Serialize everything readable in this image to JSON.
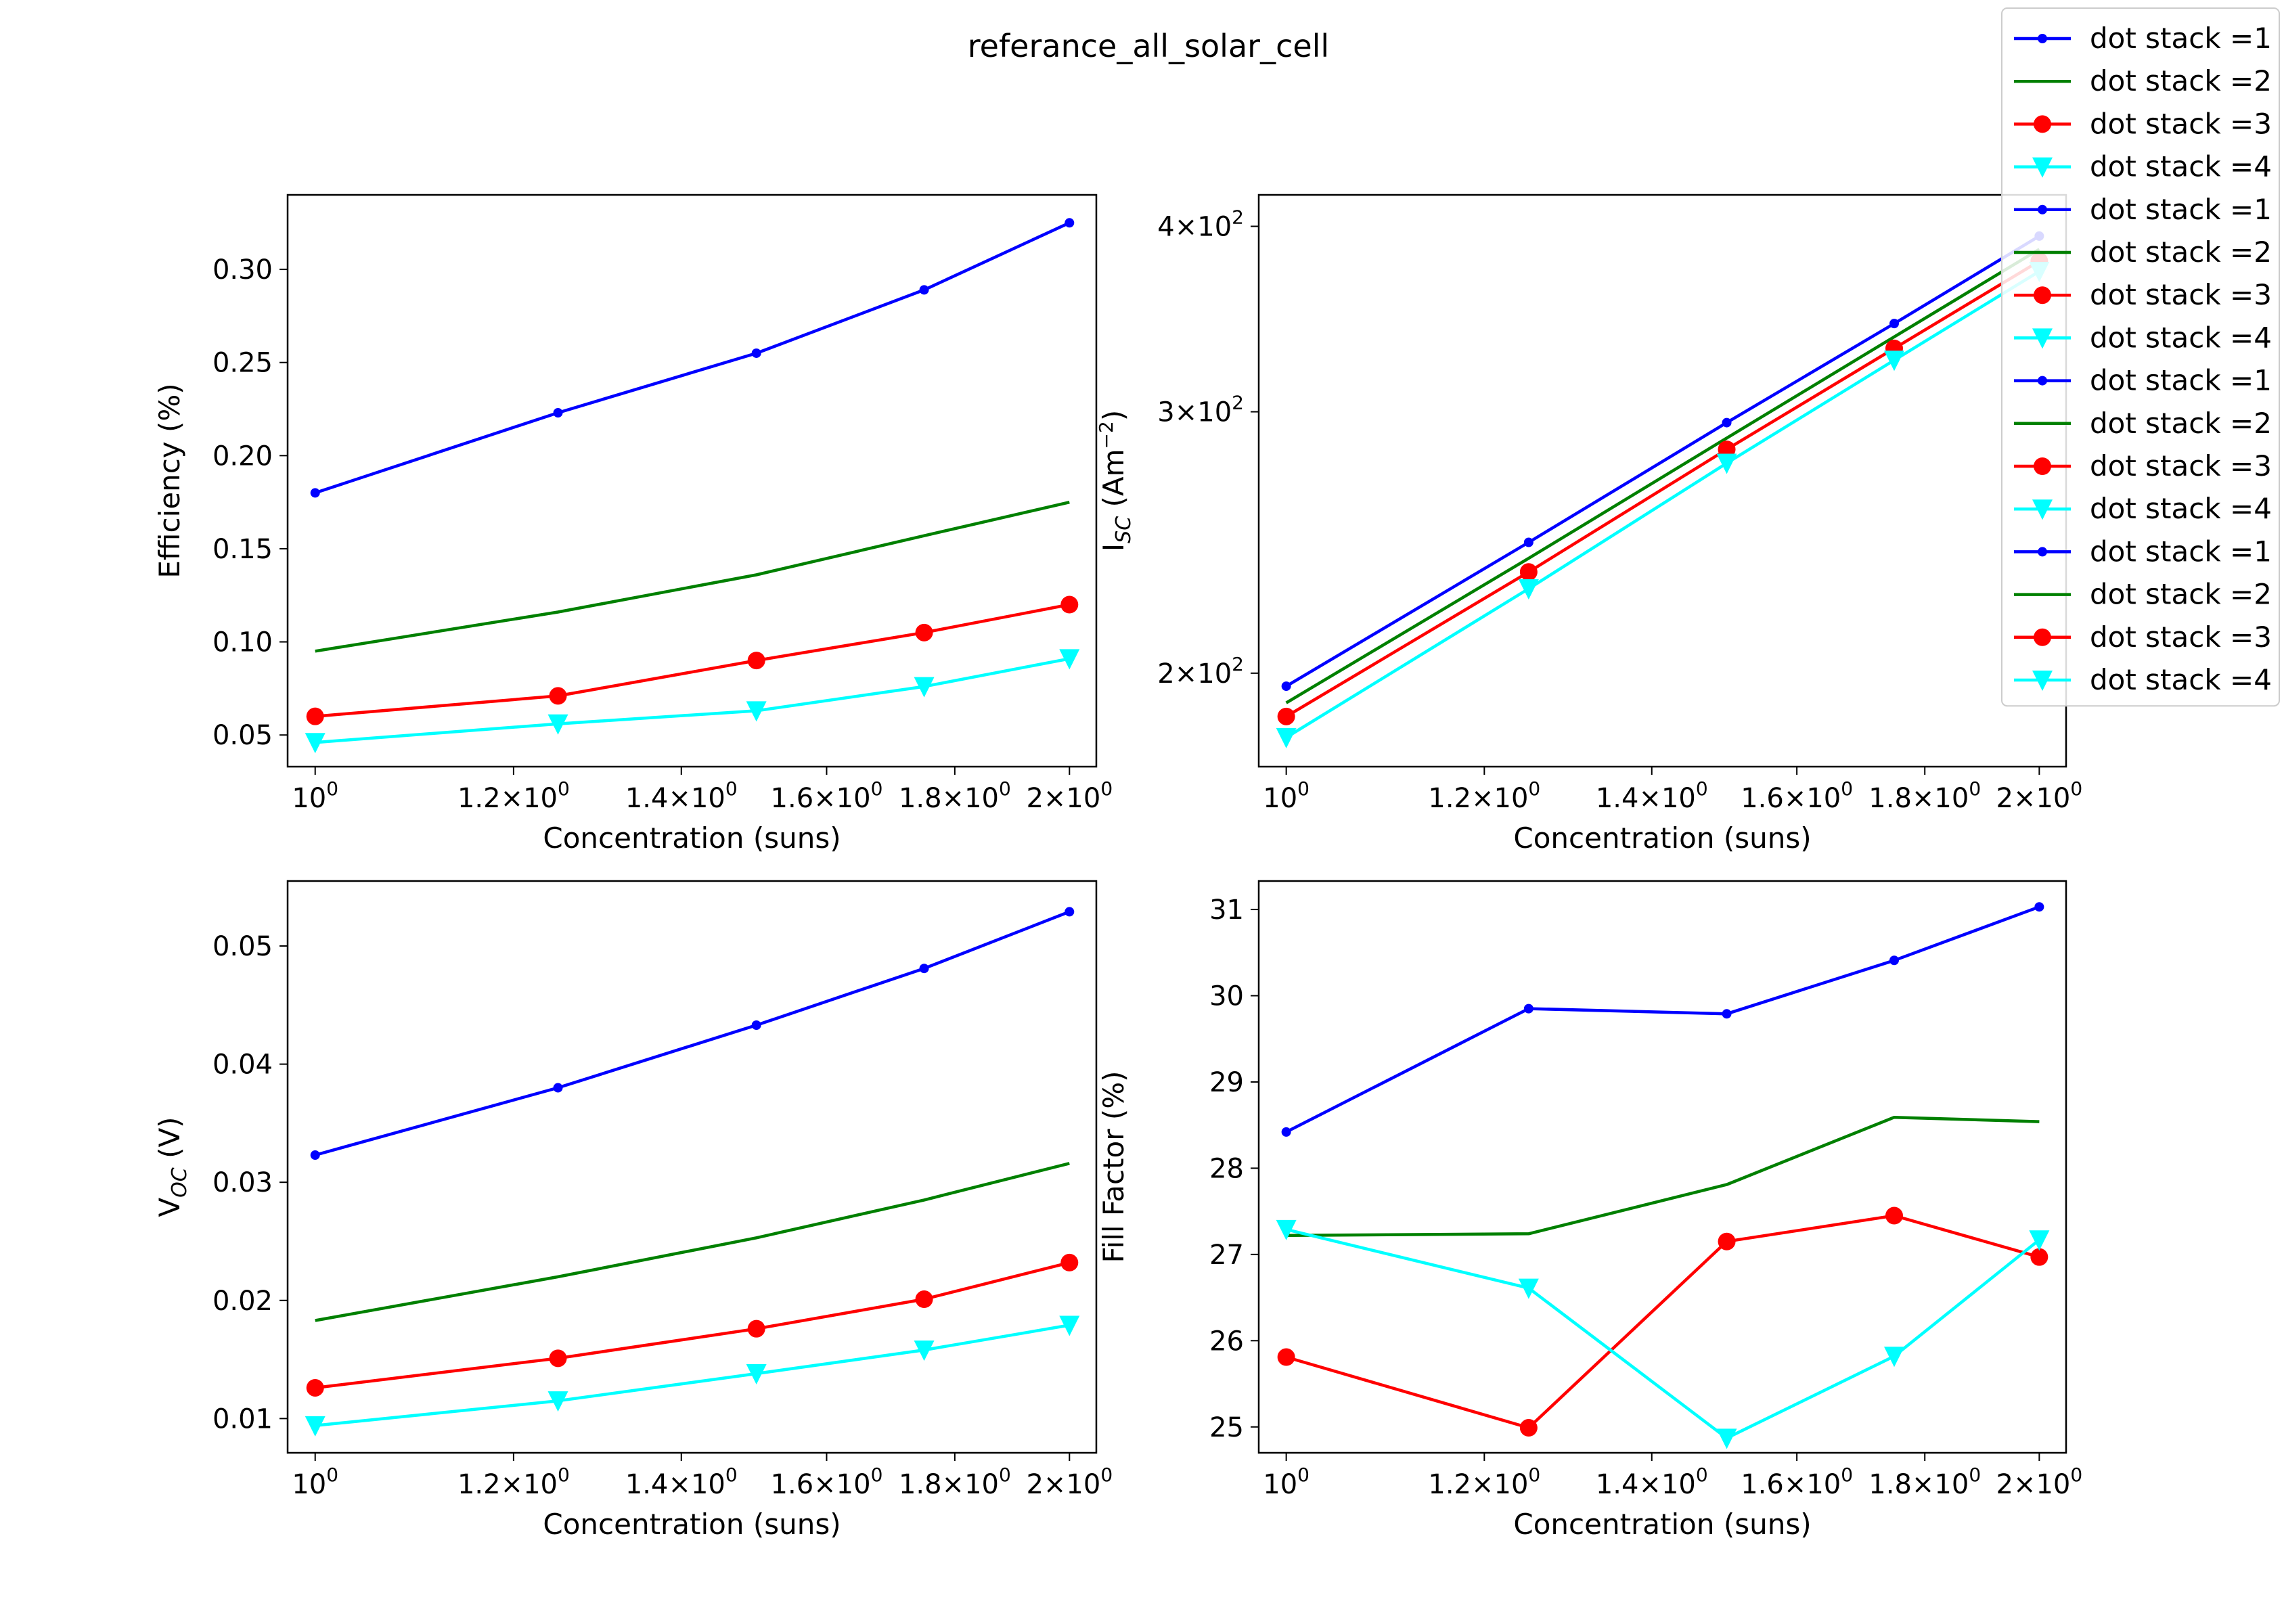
{
  "suptitle": "referance_all_solar_cell",
  "colors": {
    "s1": "#0000ff",
    "s2": "#008000",
    "s3": "#ff0000",
    "s4": "#00ffff"
  },
  "legend": {
    "placement": "upper-right",
    "entries": [
      {
        "label": "dot stack =1",
        "color": "#0000ff",
        "marker": "dot"
      },
      {
        "label": "dot stack =2",
        "color": "#008000",
        "marker": "none"
      },
      {
        "label": "dot stack =3",
        "color": "#ff0000",
        "marker": "circle"
      },
      {
        "label": "dot stack =4",
        "color": "#00ffff",
        "marker": "triangle-down"
      },
      {
        "label": "dot stack =1",
        "color": "#0000ff",
        "marker": "dot"
      },
      {
        "label": "dot stack =2",
        "color": "#008000",
        "marker": "none"
      },
      {
        "label": "dot stack =3",
        "color": "#ff0000",
        "marker": "circle"
      },
      {
        "label": "dot stack =4",
        "color": "#00ffff",
        "marker": "triangle-down"
      },
      {
        "label": "dot stack =1",
        "color": "#0000ff",
        "marker": "dot"
      },
      {
        "label": "dot stack =2",
        "color": "#008000",
        "marker": "none"
      },
      {
        "label": "dot stack =3",
        "color": "#ff0000",
        "marker": "circle"
      },
      {
        "label": "dot stack =4",
        "color": "#00ffff",
        "marker": "triangle-down"
      },
      {
        "label": "dot stack =1",
        "color": "#0000ff",
        "marker": "dot"
      },
      {
        "label": "dot stack =2",
        "color": "#008000",
        "marker": "none"
      },
      {
        "label": "dot stack =3",
        "color": "#ff0000",
        "marker": "circle"
      },
      {
        "label": "dot stack =4",
        "color": "#00ffff",
        "marker": "triangle-down"
      }
    ]
  },
  "chart_data": [
    {
      "type": "line",
      "xscale": "log",
      "xlabel": "Concentration (suns)",
      "ylabel": "Efficiency (%)",
      "xlim": [
        0.975,
        2.05
      ],
      "ylim": [
        0.033,
        0.34
      ],
      "xticks": [
        {
          "value": 1.0,
          "label": "10",
          "exp": "0"
        },
        {
          "value": 1.2,
          "label": "1.2×10",
          "exp": "0"
        },
        {
          "value": 1.4,
          "label": "1.4×10",
          "exp": "0"
        },
        {
          "value": 1.6,
          "label": "1.6×10",
          "exp": "0"
        },
        {
          "value": 1.8,
          "label": "1.8×10",
          "exp": "0"
        },
        {
          "value": 2.0,
          "label": "2×10",
          "exp": "0"
        }
      ],
      "yticks": [
        {
          "value": 0.05,
          "label": "0.05"
        },
        {
          "value": 0.1,
          "label": "0.10"
        },
        {
          "value": 0.15,
          "label": "0.15"
        },
        {
          "value": 0.2,
          "label": "0.20"
        },
        {
          "value": 0.25,
          "label": "0.25"
        },
        {
          "value": 0.3,
          "label": "0.30"
        }
      ],
      "x": [
        1.0,
        1.25,
        1.5,
        1.75,
        2.0
      ],
      "series": [
        {
          "name": "dot stack =1",
          "color": "#0000ff",
          "marker": "dot",
          "values": [
            0.18,
            0.223,
            0.255,
            0.289,
            0.325
          ]
        },
        {
          "name": "dot stack =2",
          "color": "#008000",
          "marker": "none",
          "values": [
            0.095,
            0.116,
            0.136,
            0.157,
            0.175
          ]
        },
        {
          "name": "dot stack =3",
          "color": "#ff0000",
          "marker": "circle",
          "values": [
            0.06,
            0.071,
            0.09,
            0.105,
            0.12
          ]
        },
        {
          "name": "dot stack =4",
          "color": "#00ffff",
          "marker": "triangle-down",
          "values": [
            0.046,
            0.056,
            0.063,
            0.076,
            0.091
          ]
        }
      ]
    },
    {
      "type": "line",
      "xscale": "log",
      "yscale": "log",
      "xlabel": "Concentration (suns)",
      "ylabel": "I",
      "ylabel_sub": "SC",
      "ylabel_rest": " (Am",
      "ylabel_sup": "−2",
      "ylabel_end": ")",
      "xlim": [
        0.975,
        2.05
      ],
      "ylim": [
        173,
        420
      ],
      "xticks": [
        {
          "value": 1.0,
          "label": "10",
          "exp": "0"
        },
        {
          "value": 1.2,
          "label": "1.2×10",
          "exp": "0"
        },
        {
          "value": 1.4,
          "label": "1.4×10",
          "exp": "0"
        },
        {
          "value": 1.6,
          "label": "1.6×10",
          "exp": "0"
        },
        {
          "value": 1.8,
          "label": "1.8×10",
          "exp": "0"
        },
        {
          "value": 2.0,
          "label": "2×10",
          "exp": "0"
        }
      ],
      "yticks": [
        {
          "value": 200,
          "label": "2×10",
          "exp": "2"
        },
        {
          "value": 300,
          "label": "3×10",
          "exp": "2"
        },
        {
          "value": 400,
          "label": "4×10",
          "exp": "2"
        }
      ],
      "x": [
        1.0,
        1.25,
        1.5,
        1.75,
        2.0
      ],
      "series": [
        {
          "name": "dot stack =1",
          "color": "#0000ff",
          "marker": "dot",
          "values": [
            196,
            245,
            295,
            344,
            394
          ]
        },
        {
          "name": "dot stack =2",
          "color": "#008000",
          "marker": "none",
          "values": [
            191,
            239,
            288,
            337,
            386
          ]
        },
        {
          "name": "dot stack =3",
          "color": "#ff0000",
          "marker": "circle",
          "values": [
            187,
            234,
            283,
            331,
            379
          ]
        },
        {
          "name": "dot stack =4",
          "color": "#00ffff",
          "marker": "triangle-down",
          "values": [
            181,
            228,
            277,
            325,
            373
          ]
        }
      ]
    },
    {
      "type": "line",
      "xscale": "log",
      "xlabel": "Concentration (suns)",
      "ylabel": "V",
      "ylabel_sub": "OC",
      "ylabel_rest": " (V)",
      "xlim": [
        0.975,
        2.05
      ],
      "ylim": [
        0.0071,
        0.0555
      ],
      "xticks": [
        {
          "value": 1.0,
          "label": "10",
          "exp": "0"
        },
        {
          "value": 1.2,
          "label": "1.2×10",
          "exp": "0"
        },
        {
          "value": 1.4,
          "label": "1.4×10",
          "exp": "0"
        },
        {
          "value": 1.6,
          "label": "1.6×10",
          "exp": "0"
        },
        {
          "value": 1.8,
          "label": "1.8×10",
          "exp": "0"
        },
        {
          "value": 2.0,
          "label": "2×10",
          "exp": "0"
        }
      ],
      "yticks": [
        {
          "value": 0.01,
          "label": "0.01"
        },
        {
          "value": 0.02,
          "label": "0.02"
        },
        {
          "value": 0.03,
          "label": "0.03"
        },
        {
          "value": 0.04,
          "label": "0.04"
        },
        {
          "value": 0.05,
          "label": "0.05"
        }
      ],
      "x": [
        1.0,
        1.25,
        1.5,
        1.75,
        2.0
      ],
      "series": [
        {
          "name": "dot stack =1",
          "color": "#0000ff",
          "marker": "dot",
          "values": [
            0.0323,
            0.038,
            0.0433,
            0.0481,
            0.0529
          ]
        },
        {
          "name": "dot stack =2",
          "color": "#008000",
          "marker": "none",
          "values": [
            0.0183,
            0.022,
            0.0253,
            0.0285,
            0.0316
          ]
        },
        {
          "name": "dot stack =3",
          "color": "#ff0000",
          "marker": "circle",
          "values": [
            0.0126,
            0.0151,
            0.0176,
            0.0201,
            0.0232
          ]
        },
        {
          "name": "dot stack =4",
          "color": "#00ffff",
          "marker": "triangle-down",
          "values": [
            0.0094,
            0.0115,
            0.0138,
            0.0158,
            0.0179
          ]
        }
      ]
    },
    {
      "type": "line",
      "xscale": "log",
      "xlabel": "Concentration (suns)",
      "ylabel": "Fill Factor (%)",
      "xlim": [
        0.975,
        2.05
      ],
      "ylim": [
        24.7,
        31.33
      ],
      "xticks": [
        {
          "value": 1.0,
          "label": "10",
          "exp": "0"
        },
        {
          "value": 1.2,
          "label": "1.2×10",
          "exp": "0"
        },
        {
          "value": 1.4,
          "label": "1.4×10",
          "exp": "0"
        },
        {
          "value": 1.6,
          "label": "1.6×10",
          "exp": "0"
        },
        {
          "value": 1.8,
          "label": "1.8×10",
          "exp": "0"
        },
        {
          "value": 2.0,
          "label": "2×10",
          "exp": "0"
        }
      ],
      "yticks": [
        {
          "value": 25,
          "label": "25"
        },
        {
          "value": 26,
          "label": "26"
        },
        {
          "value": 27,
          "label": "27"
        },
        {
          "value": 28,
          "label": "28"
        },
        {
          "value": 29,
          "label": "29"
        },
        {
          "value": 30,
          "label": "30"
        },
        {
          "value": 31,
          "label": "31"
        }
      ],
      "x": [
        1.0,
        1.25,
        1.5,
        1.75,
        2.0
      ],
      "series": [
        {
          "name": "dot stack =1",
          "color": "#0000ff",
          "marker": "dot",
          "values": [
            28.42,
            29.85,
            29.79,
            30.41,
            31.03
          ]
        },
        {
          "name": "dot stack =2",
          "color": "#008000",
          "marker": "none",
          "values": [
            27.22,
            27.24,
            27.81,
            28.59,
            28.54
          ]
        },
        {
          "name": "dot stack =3",
          "color": "#ff0000",
          "marker": "circle",
          "values": [
            25.81,
            24.99,
            27.15,
            27.45,
            26.97
          ]
        },
        {
          "name": "dot stack =4",
          "color": "#00ffff",
          "marker": "triangle-down",
          "values": [
            27.29,
            26.61,
            24.87,
            25.82,
            27.17
          ]
        }
      ]
    }
  ]
}
